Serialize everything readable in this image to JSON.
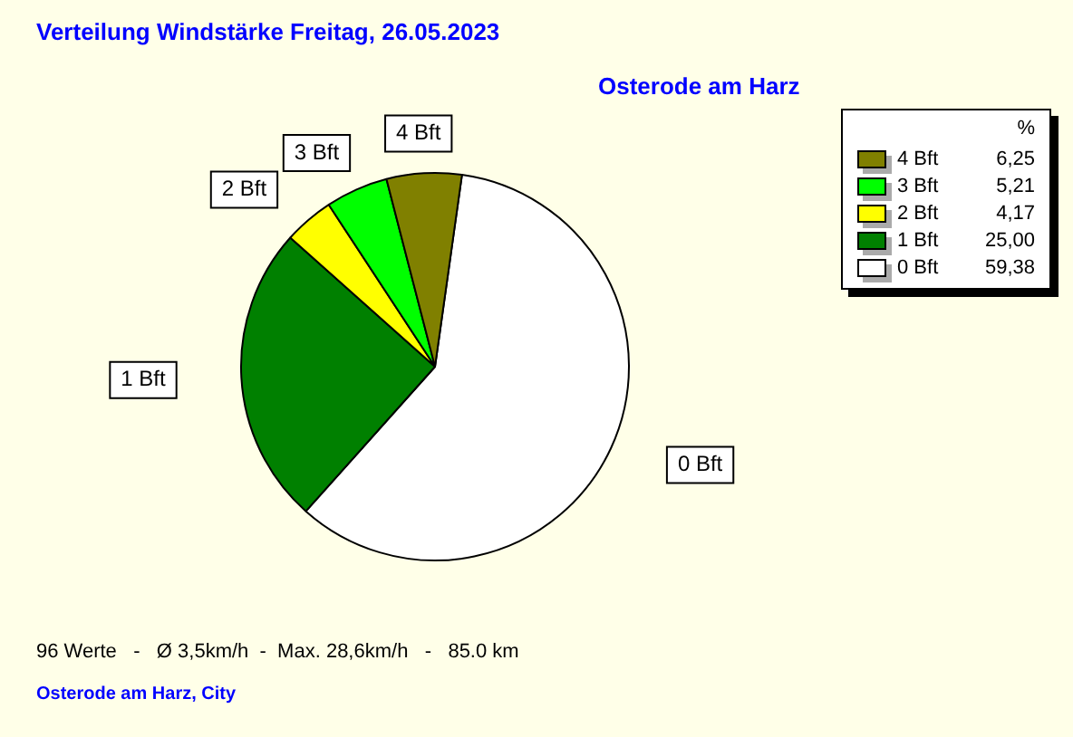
{
  "chart_data": {
    "type": "pie",
    "title": "Verteilung Windstärke  Freitag, 26.05.2023",
    "subtitle": "Osterode am Harz",
    "categories": [
      "0 Bft",
      "1 Bft",
      "2 Bft",
      "3 Bft",
      "4 Bft"
    ],
    "values": [
      59.38,
      25.0,
      4.17,
      5.21,
      6.25
    ],
    "value_labels": [
      "59,38",
      "25,00",
      "4,17",
      "5,21",
      "6,25"
    ],
    "colors": [
      "#ffffff",
      "#008000",
      "#ffff00",
      "#00ff00",
      "#808000"
    ],
    "legend": "top right",
    "legend_title": "%",
    "annotations": [
      "96 Werte   -   Ø 3,5km/h  -  Max. 28,6km/h   -   85.0 km",
      "Osterode am Harz, City"
    ]
  }
}
